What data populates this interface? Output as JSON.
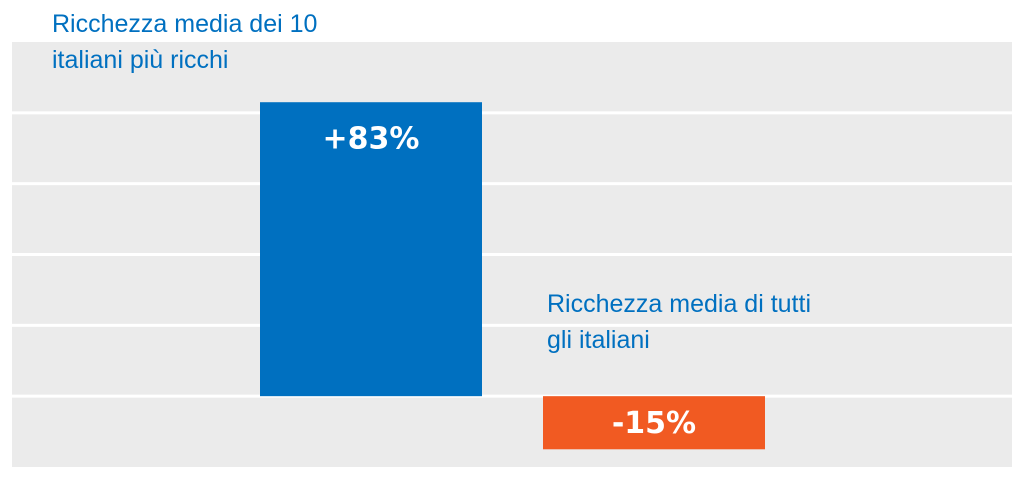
{
  "chart_data": {
    "type": "bar",
    "categories": [
      "Ricchezza media dei 10 italiani più ricchi",
      "Ricchezza media di tutti gli italiani"
    ],
    "values": [
      83,
      -15
    ],
    "value_labels": [
      "+83%",
      "-15%"
    ],
    "colors": [
      "#0070c0",
      "#f15a22"
    ],
    "ylim": [
      -20,
      100
    ],
    "yticks": [
      0,
      20,
      40,
      60,
      80
    ],
    "grid": true
  }
}
